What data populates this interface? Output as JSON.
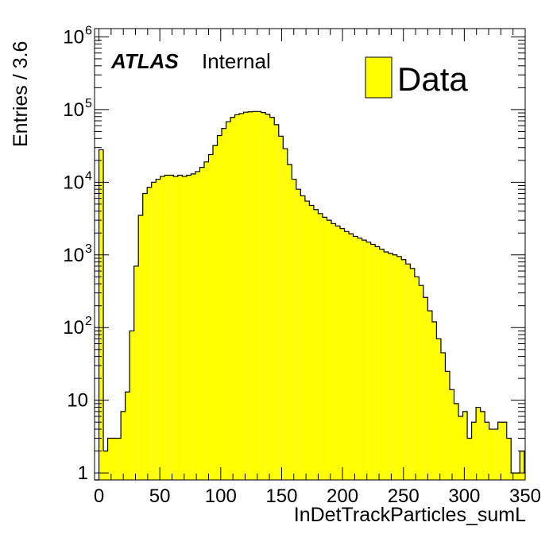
{
  "chart_data": {
    "type": "bar",
    "title": "",
    "xlabel": "InDetTrackParticles_sumL",
    "ylabel": "Entries / 3.6",
    "xlim": [
      -3.6,
      350
    ],
    "ylim": [
      0.8,
      1300000
    ],
    "yscale": "log",
    "bin_width": 3.6,
    "bin_start": -3.6,
    "fill_color": "#ffff00",
    "line_color": "#000000",
    "x_ticks": [
      "0",
      "50",
      "100",
      "150",
      "200",
      "250",
      "300",
      "350"
    ],
    "x_tick_values": [
      0,
      50,
      100,
      150,
      200,
      250,
      300,
      350
    ],
    "y_ticks": [
      {
        "value": 1,
        "base": "1",
        "exp": ""
      },
      {
        "value": 10,
        "base": "10",
        "exp": ""
      },
      {
        "value": 100,
        "base": "10",
        "exp": "2"
      },
      {
        "value": 1000,
        "base": "10",
        "exp": "3"
      },
      {
        "value": 10000,
        "base": "10",
        "exp": "4"
      },
      {
        "value": 100000,
        "base": "10",
        "exp": "5"
      },
      {
        "value": 1000000,
        "base": "10",
        "exp": "6"
      }
    ],
    "legend": {
      "label": "Data",
      "position": "top-right"
    },
    "series": [
      {
        "name": "Data",
        "values": [
          0,
          28000,
          2,
          3,
          3,
          3,
          7,
          13,
          90,
          700,
          3500,
          7000,
          8500,
          10000,
          11000,
          12000,
          12500,
          12500,
          12000,
          12500,
          12000,
          12500,
          13000,
          14000,
          16000,
          19000,
          24000,
          32000,
          44000,
          55000,
          68000,
          78000,
          85000,
          88000,
          92000,
          93000,
          94000,
          94000,
          91000,
          86000,
          78000,
          62000,
          43000,
          29000,
          17500,
          11000,
          8000,
          6500,
          5500,
          4800,
          4200,
          3700,
          3300,
          3000,
          2700,
          2500,
          2300,
          2100,
          1950,
          1800,
          1700,
          1600,
          1500,
          1400,
          1300,
          1200,
          1100,
          1050,
          1000,
          950,
          860,
          750,
          650,
          500,
          380,
          260,
          170,
          120,
          70,
          45,
          25,
          14,
          9,
          6,
          7,
          3,
          5,
          8,
          7,
          5,
          4,
          4,
          5,
          5,
          3,
          1,
          1,
          2,
          1,
          1,
          0,
          2,
          1,
          0,
          2,
          0,
          0,
          0
        ]
      }
    ]
  }
}
